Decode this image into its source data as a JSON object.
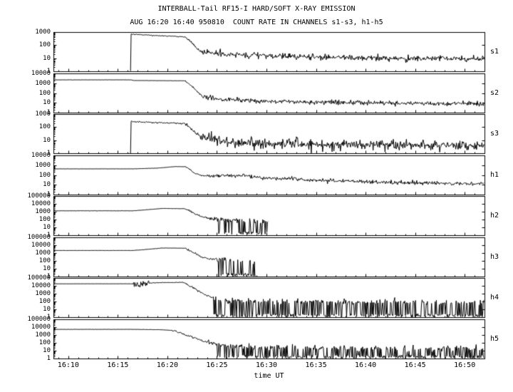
{
  "title": "INTERBALL-Tail RF15-I HARD/SOFT X-RAY EMISSION",
  "subtitle": "AUG 16:20 16:40 950810  COUNT RATE IN CHANNELS s1-s3, h1-h5",
  "colors": {
    "fg": "#000000",
    "bg": "#ffffff"
  },
  "chart_data": {
    "type": "line",
    "y_scale": "log",
    "xlabel": "time UT",
    "x_range_minutes_after_1600": [
      8.5,
      52
    ],
    "x_ticks": [
      {
        "t": 10,
        "label": "16:10"
      },
      {
        "t": 15,
        "label": "16:15"
      },
      {
        "t": 20,
        "label": "16:20"
      },
      {
        "t": 25,
        "label": "16:25"
      },
      {
        "t": 30,
        "label": "16:30"
      },
      {
        "t": 35,
        "label": "16:35"
      },
      {
        "t": 40,
        "label": "16:40"
      },
      {
        "t": 45,
        "label": "16:45"
      },
      {
        "t": 50,
        "label": "16:50"
      }
    ],
    "panels": [
      {
        "label": "s1",
        "decades": 3,
        "yticks": [
          "1000",
          "100",
          "10",
          "1"
        ],
        "runs": [
          {
            "keypoints": [
              [
                16.28,
                1.05
              ],
              [
                16.33,
                700
              ],
              [
                18,
                580
              ],
              [
                21.8,
                430
              ],
              [
                22.4,
                160
              ],
              [
                23.3,
                32
              ],
              [
                26,
                20
              ],
              [
                30,
                15
              ],
              [
                38,
                11
              ],
              [
                52,
                9
              ]
            ],
            "noise": [
              [
                16.28,
                21.8,
                0.02
              ],
              [
                21.8,
                23.3,
                0.05
              ],
              [
                23.3,
                52,
                0.11
              ]
            ],
            "spikes": []
          }
        ]
      },
      {
        "label": "s2",
        "decades": 4,
        "yticks": [
          "10000",
          "1000",
          "100",
          "10",
          "1"
        ],
        "runs": [
          {
            "keypoints": [
              [
                8.5,
                2200
              ],
              [
                16.3,
                2200
              ],
              [
                16.6,
                1900
              ],
              [
                21.8,
                1750
              ],
              [
                22.4,
                600
              ],
              [
                23.6,
                38
              ],
              [
                26,
                22
              ],
              [
                30,
                14
              ],
              [
                40,
                10
              ],
              [
                52,
                8
              ]
            ],
            "noise": [
              [
                8.5,
                21.8,
                0.005
              ],
              [
                21.8,
                23.6,
                0.05
              ],
              [
                23.6,
                52,
                0.11
              ]
            ],
            "spikes": []
          }
        ]
      },
      {
        "label": "s3",
        "decades": 3,
        "yticks": [
          "1000",
          "100",
          "10",
          "1"
        ],
        "runs": [
          {
            "keypoints": [
              [
                16.28,
                1.05
              ],
              [
                16.33,
                270
              ],
              [
                18,
                235
              ],
              [
                21.8,
                185
              ],
              [
                22.4,
                70
              ],
              [
                23.4,
                18
              ],
              [
                26,
                7.5
              ],
              [
                30,
                5.5
              ],
              [
                40,
                4.5
              ],
              [
                52,
                4
              ]
            ],
            "noise": [
              [
                16.28,
                21.8,
                0.03
              ],
              [
                21.8,
                23.4,
                0.07
              ],
              [
                23.4,
                52,
                0.17
              ]
            ],
            "spikes": [
              [
                29,
                52,
                0.01
              ]
            ]
          }
        ]
      },
      {
        "label": "h1",
        "decades": 4,
        "yticks": [
          "10000",
          "1000",
          "100",
          "10",
          "1"
        ],
        "runs": [
          {
            "keypoints": [
              [
                8.5,
                420
              ],
              [
                16.5,
                420
              ],
              [
                19,
                500
              ],
              [
                20.8,
                720
              ],
              [
                21.8,
                690
              ],
              [
                22.2,
                420
              ],
              [
                22.7,
                150
              ],
              [
                23.3,
                95
              ],
              [
                24.5,
                75
              ],
              [
                25.5,
                88
              ],
              [
                27.8,
                85
              ],
              [
                29.5,
                48
              ],
              [
                31,
                38
              ],
              [
                32.5,
                46
              ],
              [
                34,
                33
              ],
              [
                40,
                20
              ],
              [
                46,
                15
              ],
              [
                52,
                12
              ]
            ],
            "noise": [
              [
                8.5,
                21.8,
                0.006
              ],
              [
                21.8,
                24,
                0.03
              ],
              [
                24,
                52,
                0.09
              ]
            ],
            "spikes": []
          }
        ]
      },
      {
        "label": "h2",
        "decades": 5,
        "yticks": [
          "100000",
          "10000",
          "1000",
          "100",
          "10",
          "1"
        ],
        "runs": [
          {
            "keypoints": [
              [
                8.5,
                1300
              ],
              [
                16.5,
                1300
              ],
              [
                17.5,
                1600
              ],
              [
                19.5,
                2600
              ],
              [
                21.8,
                2400
              ],
              [
                22.5,
                800
              ],
              [
                23.3,
                280
              ],
              [
                24.2,
                140
              ],
              [
                25.5,
                95
              ],
              [
                27,
                80
              ],
              [
                30.2,
                60
              ]
            ],
            "noise": [
              [
                8.5,
                21.8,
                0.008
              ],
              [
                21.8,
                24.2,
                0.06
              ],
              [
                24.2,
                30.2,
                0.16
              ]
            ],
            "spikes": [
              [
                24.4,
                27.2,
                0.13
              ],
              [
                27.2,
                29.6,
                0.72
              ],
              [
                29.6,
                30.2,
                0.25
              ]
            ]
          }
        ]
      },
      {
        "label": "h3",
        "decades": 5,
        "yticks": [
          "100000",
          "10000",
          "1000",
          "100",
          "10",
          "1"
        ],
        "runs": [
          {
            "keypoints": [
              [
                8.5,
                2100
              ],
              [
                16.5,
                2100
              ],
              [
                17.5,
                2600
              ],
              [
                19.5,
                4300
              ],
              [
                21.8,
                4100
              ],
              [
                22.5,
                1400
              ],
              [
                23.4,
                330
              ],
              [
                24.6,
                155
              ],
              [
                26,
                110
              ],
              [
                28.9,
                80
              ]
            ],
            "noise": [
              [
                8.5,
                21.8,
                0.008
              ],
              [
                21.8,
                24.6,
                0.06
              ],
              [
                24.6,
                28.9,
                0.16
              ]
            ],
            "spikes": [
              [
                23.9,
                25.9,
                0.16
              ],
              [
                25.9,
                28.9,
                0.72
              ]
            ]
          }
        ]
      },
      {
        "label": "h4",
        "decades": 5,
        "yticks": [
          "100000",
          "10000",
          "1000",
          "100",
          "10",
          "1"
        ],
        "runs": [
          {
            "keypoints": [
              [
                8.5,
                18000
              ],
              [
                16.6,
                18000
              ],
              [
                17.0,
                11000
              ],
              [
                17.6,
                15000
              ],
              [
                18.2,
                22000
              ],
              [
                19,
                25000
              ],
              [
                21.6,
                28000
              ],
              [
                22.3,
                9000
              ],
              [
                23.1,
                2400
              ],
              [
                23.9,
                650
              ],
              [
                25.1,
                170
              ],
              [
                27,
                120
              ],
              [
                34,
                90
              ],
              [
                42,
                80
              ],
              [
                52,
                70
              ]
            ],
            "noise": [
              [
                8.5,
                16.6,
                0.006
              ],
              [
                16.6,
                18.2,
                0.22
              ],
              [
                18.2,
                21.6,
                0.02
              ],
              [
                21.6,
                24.6,
                0.06
              ],
              [
                24.6,
                52,
                0.18
              ]
            ],
            "spikes": [
              [
                24.6,
                28,
                0.3
              ],
              [
                28,
                52,
                0.55
              ]
            ]
          }
        ]
      },
      {
        "label": "h5",
        "decades": 5,
        "yticks": [
          "100000",
          "10000",
          "1000",
          "100",
          "10",
          "1"
        ],
        "runs": [
          {
            "keypoints": [
              [
                8.5,
                5200
              ],
              [
                16.5,
                5200
              ],
              [
                19.5,
                4600
              ],
              [
                20.5,
                3800
              ],
              [
                21.3,
                2000
              ],
              [
                22,
                900
              ],
              [
                22.9,
                380
              ],
              [
                23.6,
                170
              ],
              [
                24.6,
                85
              ],
              [
                26,
                42
              ],
              [
                28,
                30
              ],
              [
                34,
                25
              ],
              [
                42,
                22
              ],
              [
                52,
                20
              ]
            ],
            "noise": [
              [
                8.5,
                20.5,
                0.007
              ],
              [
                20.5,
                24,
                0.06
              ],
              [
                24,
                52,
                0.18
              ]
            ],
            "spikes": [
              [
                24.8,
                28,
                0.3
              ],
              [
                28,
                52,
                0.6
              ]
            ]
          }
        ]
      }
    ]
  }
}
